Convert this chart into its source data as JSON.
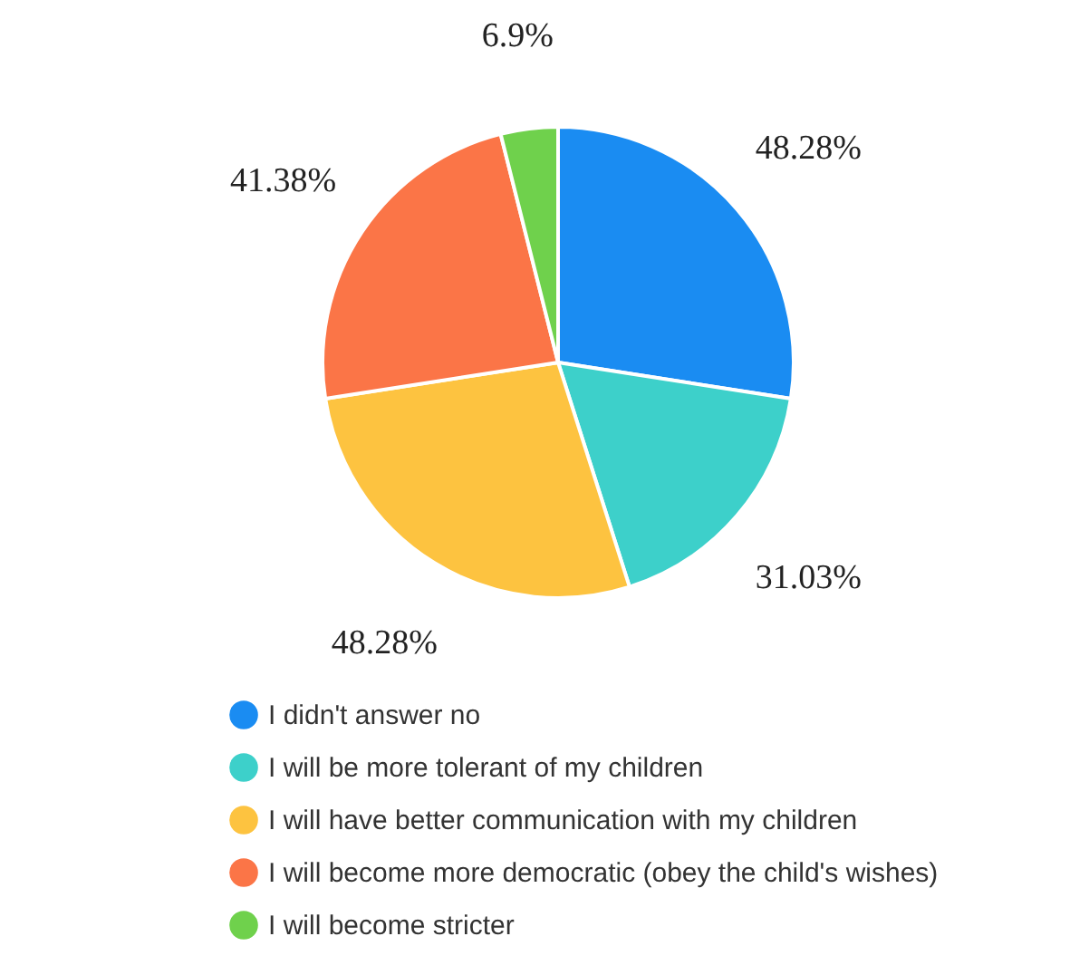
{
  "chart_data": {
    "type": "pie",
    "categories": [
      "I didn't answer no",
      "I will be more tolerant of my children",
      "I will have better communication with my children",
      "I will become more democratic (obey the child's wishes)",
      "I will become stricter"
    ],
    "values": [
      48.28,
      31.03,
      48.28,
      41.38,
      6.9
    ],
    "value_labels": [
      "48.28%",
      "31.03%",
      "48.28%",
      "41.38%",
      "6.9%"
    ],
    "colors": [
      "#1a8cf2",
      "#3dd0ca",
      "#fdc340",
      "#fb7547",
      "#6fd14c"
    ],
    "legend": "bottom"
  }
}
